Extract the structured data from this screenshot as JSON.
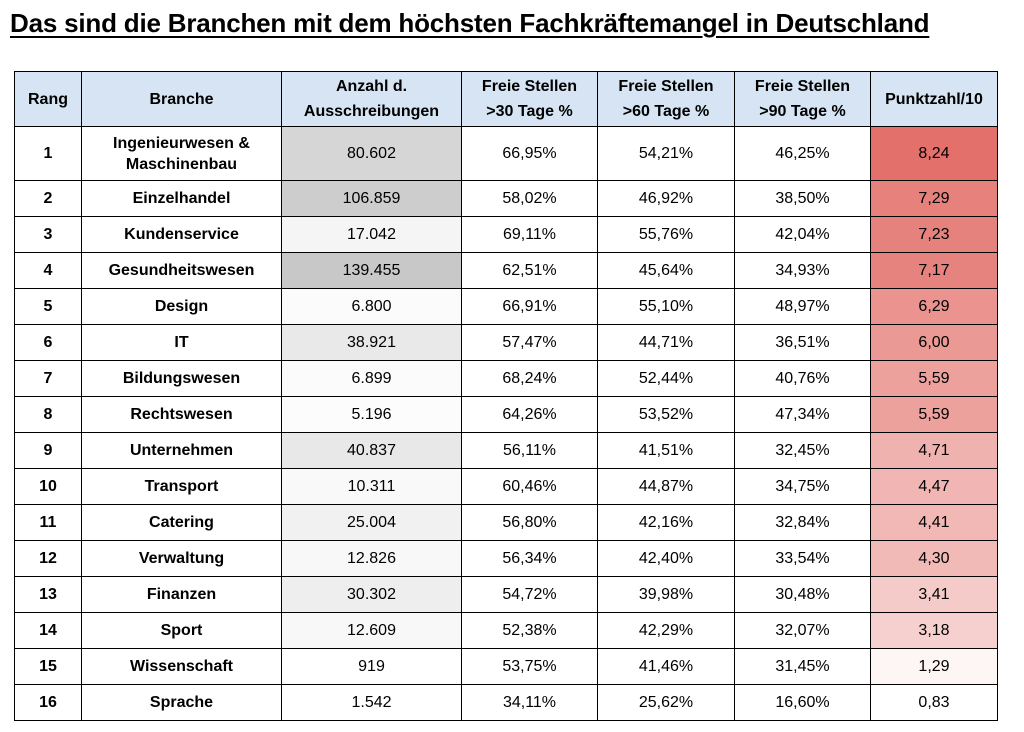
{
  "title": "Das sind die Branchen mit dem höchsten Fachkräftemangel in Deutschland",
  "headers": {
    "rang": "Rang",
    "branche": "Branche",
    "anzahl_1": "Anzahl d.",
    "anzahl_2": "Ausschreibungen",
    "f30_1": "Freie Stellen",
    "f30_2": ">30 Tage %",
    "f60_1": "Freie Stellen",
    "f60_2": ">60 Tage %",
    "f90_1": "Freie Stellen",
    "f90_2": ">90 Tage %",
    "punkte": "Punktzahl/10"
  },
  "rows": [
    {
      "rang": "1",
      "branche": "Ingenieurwesen & Maschinenbau",
      "anzahl": "80.602",
      "f30": "66,95%",
      "f60": "54,21%",
      "f90": "46,25%",
      "punkte": "8,24",
      "score": 8.24,
      "anzahl_n": 80602
    },
    {
      "rang": "2",
      "branche": "Einzelhandel",
      "anzahl": "106.859",
      "f30": "58,02%",
      "f60": "46,92%",
      "f90": "38,50%",
      "punkte": "7,29",
      "score": 7.29,
      "anzahl_n": 106859
    },
    {
      "rang": "3",
      "branche": "Kundenservice",
      "anzahl": "17.042",
      "f30": "69,11%",
      "f60": "55,76%",
      "f90": "42,04%",
      "punkte": "7,23",
      "score": 7.23,
      "anzahl_n": 17042
    },
    {
      "rang": "4",
      "branche": "Gesundheitswesen",
      "anzahl": "139.455",
      "f30": "62,51%",
      "f60": "45,64%",
      "f90": "34,93%",
      "punkte": "7,17",
      "score": 7.17,
      "anzahl_n": 139455
    },
    {
      "rang": "5",
      "branche": "Design",
      "anzahl": "6.800",
      "f30": "66,91%",
      "f60": "55,10%",
      "f90": "48,97%",
      "punkte": "6,29",
      "score": 6.29,
      "anzahl_n": 6800
    },
    {
      "rang": "6",
      "branche": "IT",
      "anzahl": "38.921",
      "f30": "57,47%",
      "f60": "44,71%",
      "f90": "36,51%",
      "punkte": "6,00",
      "score": 6.0,
      "anzahl_n": 38921
    },
    {
      "rang": "7",
      "branche": "Bildungswesen",
      "anzahl": "6.899",
      "f30": "68,24%",
      "f60": "52,44%",
      "f90": "40,76%",
      "punkte": "5,59",
      "score": 5.59,
      "anzahl_n": 6899
    },
    {
      "rang": "8",
      "branche": "Rechtswesen",
      "anzahl": "5.196",
      "f30": "64,26%",
      "f60": "53,52%",
      "f90": "47,34%",
      "punkte": "5,59",
      "score": 5.59,
      "anzahl_n": 5196
    },
    {
      "rang": "9",
      "branche": "Unternehmen",
      "anzahl": "40.837",
      "f30": "56,11%",
      "f60": "41,51%",
      "f90": "32,45%",
      "punkte": "4,71",
      "score": 4.71,
      "anzahl_n": 40837
    },
    {
      "rang": "10",
      "branche": "Transport",
      "anzahl": "10.311",
      "f30": "60,46%",
      "f60": "44,87%",
      "f90": "34,75%",
      "punkte": "4,47",
      "score": 4.47,
      "anzahl_n": 10311
    },
    {
      "rang": "11",
      "branche": "Catering",
      "anzahl": "25.004",
      "f30": "56,80%",
      "f60": "42,16%",
      "f90": "32,84%",
      "punkte": "4,41",
      "score": 4.41,
      "anzahl_n": 25004
    },
    {
      "rang": "12",
      "branche": "Verwaltung",
      "anzahl": "12.826",
      "f30": "56,34%",
      "f60": "42,40%",
      "f90": "33,54%",
      "punkte": "4,30",
      "score": 4.3,
      "anzahl_n": 12826
    },
    {
      "rang": "13",
      "branche": "Finanzen",
      "anzahl": "30.302",
      "f30": "54,72%",
      "f60": "39,98%",
      "f90": "30,48%",
      "punkte": "3,41",
      "score": 3.41,
      "anzahl_n": 30302
    },
    {
      "rang": "14",
      "branche": "Sport",
      "anzahl": "12.609",
      "f30": "52,38%",
      "f60": "42,29%",
      "f90": "32,07%",
      "punkte": "3,18",
      "score": 3.18,
      "anzahl_n": 12609
    },
    {
      "rang": "15",
      "branche": "Wissenschaft",
      "anzahl": "919",
      "f30": "53,75%",
      "f60": "41,46%",
      "f90": "31,45%",
      "punkte": "1,29",
      "score": 1.29,
      "anzahl_n": 919
    },
    {
      "rang": "16",
      "branche": "Sprache",
      "anzahl": "1.542",
      "f30": "34,11%",
      "f60": "25,62%",
      "f90": "16,60%",
      "punkte": "0,83",
      "score": 0.83,
      "anzahl_n": 1542
    }
  ],
  "colors": {
    "header_bg": "#d6e4f3",
    "score_high": "#e3706b",
    "score_low": "#ffffff",
    "count_high": "#c8c8c8",
    "count_low": "#ffffff"
  }
}
